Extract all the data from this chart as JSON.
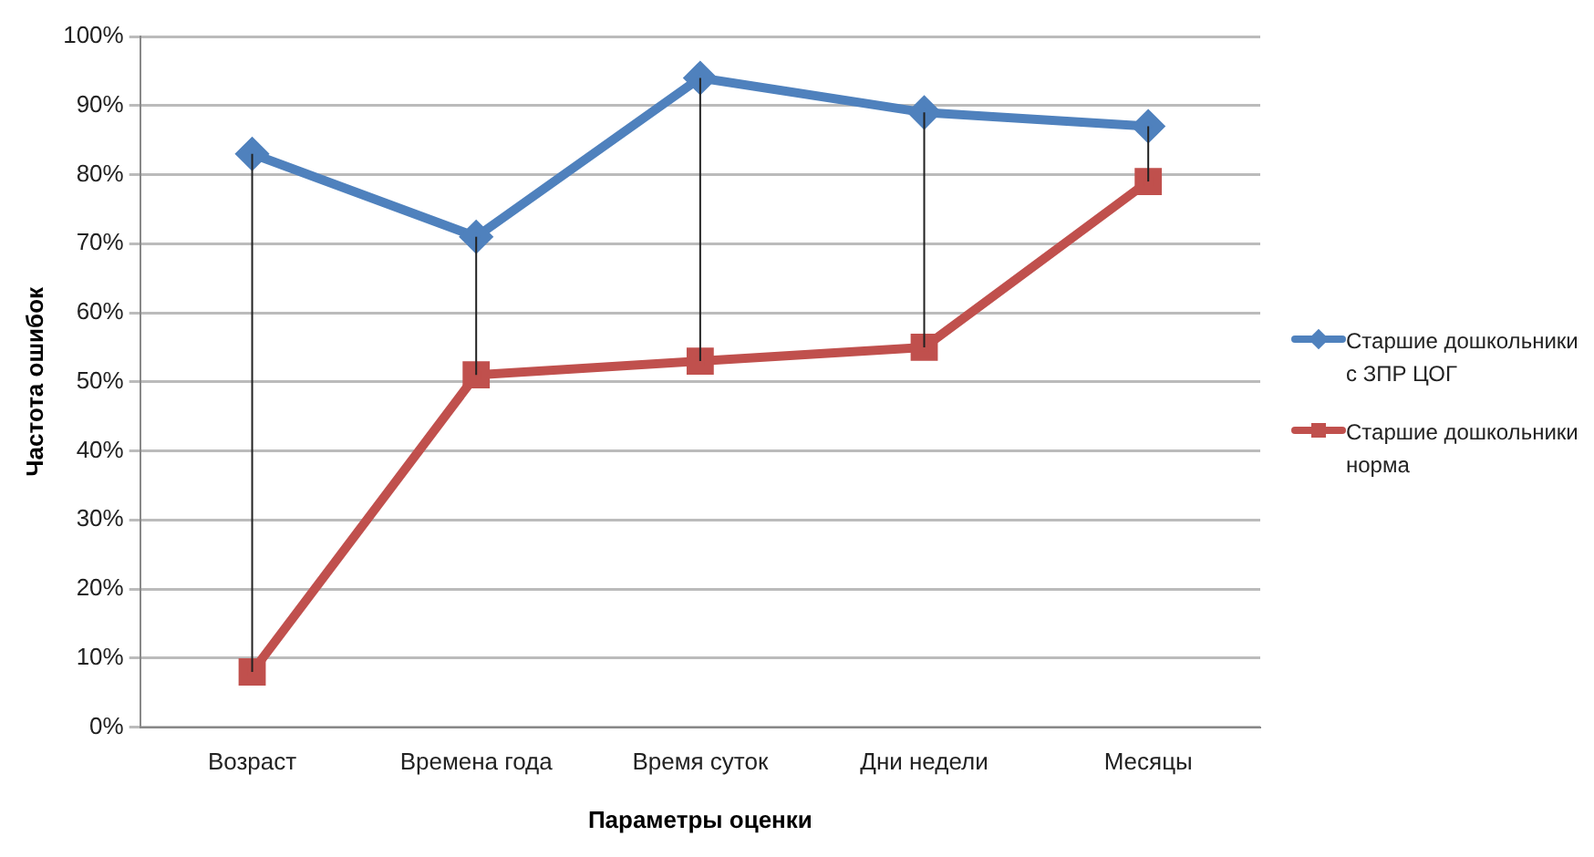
{
  "chart_data": {
    "type": "line",
    "xlabel": "Параметры оценки",
    "ylabel": "Частота ошибок",
    "categories": [
      "Возраст",
      "Времена года",
      "Время суток",
      "Дни недели",
      "Месяцы"
    ],
    "series": [
      {
        "name": "Старшие дошкольники с ЗПР ЦОГ",
        "color": "#4f81bd",
        "marker": "diamond",
        "values": [
          83,
          71,
          94,
          89,
          87
        ],
        "errors": [
          [
            8,
            83
          ],
          [
            51,
            71
          ],
          [
            53,
            94
          ],
          [
            55,
            89
          ],
          [
            79,
            87
          ]
        ]
      },
      {
        "name": "Старшие дошкольники норма",
        "color": "#c0504d",
        "marker": "square",
        "values": [
          8,
          51,
          53,
          55,
          79
        ]
      }
    ],
    "ylim": [
      0,
      100
    ],
    "yticks": [
      {
        "value": 0,
        "label": "0%"
      },
      {
        "value": 10,
        "label": "10%"
      },
      {
        "value": 20,
        "label": "20%"
      },
      {
        "value": 30,
        "label": "30%"
      },
      {
        "value": 40,
        "label": "40%"
      },
      {
        "value": 50,
        "label": "50%"
      },
      {
        "value": 60,
        "label": "60%"
      },
      {
        "value": 70,
        "label": "70%"
      },
      {
        "value": 80,
        "label": "80%"
      },
      {
        "value": 90,
        "label": "90%"
      },
      {
        "value": 100,
        "label": "100%"
      }
    ],
    "grid": "y",
    "legend": "right"
  }
}
